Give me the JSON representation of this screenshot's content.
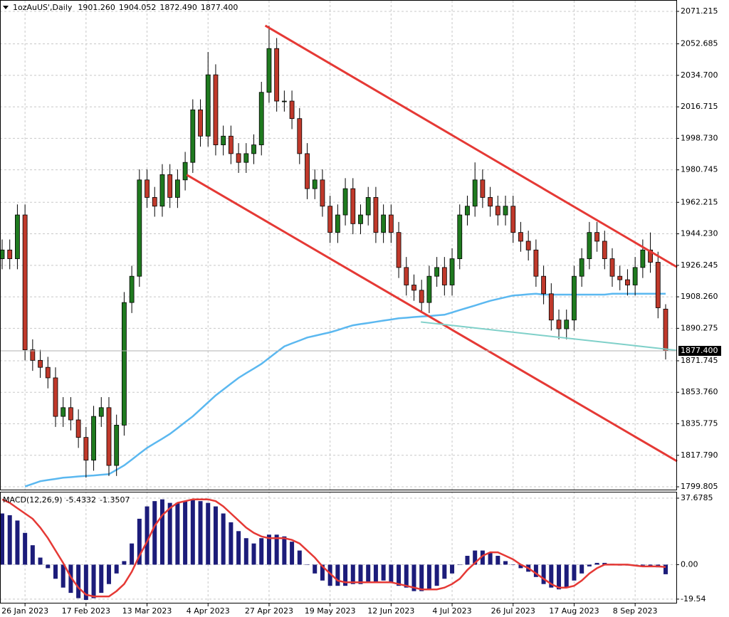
{
  "chart_data": [
    {
      "type": "candlestick",
      "title": "1ozAuUS',Daily",
      "title_values": [
        "1901.260",
        "1904.052",
        "1872.490",
        "1877.400"
      ],
      "categories": [
        null,
        null,
        null,
        "26 Jan 2023",
        null,
        null,
        null,
        null,
        null,
        null,
        null,
        "17 Feb 2023",
        null,
        null,
        null,
        null,
        null,
        null,
        null,
        "13 Mar 2023",
        null,
        null,
        null,
        null,
        null,
        null,
        null,
        "4 Apr 2023",
        null,
        null,
        null,
        null,
        null,
        null,
        null,
        "27 Apr 2023",
        null,
        null,
        null,
        null,
        null,
        null,
        null,
        "19 May 2023",
        null,
        null,
        null,
        null,
        null,
        null,
        null,
        "12 Jun 2023",
        null,
        null,
        null,
        null,
        null,
        null,
        null,
        "4 Jul 2023",
        null,
        null,
        null,
        null,
        null,
        null,
        null,
        "26 Jul 2023",
        null,
        null,
        null,
        null,
        null,
        null,
        null,
        "17 Aug 2023",
        null,
        null,
        null,
        null,
        null,
        null,
        null,
        "8 Sep 2023",
        null,
        null,
        null,
        null
      ],
      "open": [
        1930,
        1935,
        1930,
        1955,
        1878,
        1872,
        1868,
        1862,
        1840,
        1845,
        1838,
        1828,
        1815,
        1840,
        1845,
        1812,
        1835,
        1905,
        1920,
        1975,
        1965,
        1960,
        1978,
        1965,
        1975,
        1985,
        2015,
        2000,
        2035,
        1995,
        2000,
        1990,
        1985,
        1990,
        1995,
        2025,
        2050,
        2020,
        2020,
        2010,
        1990,
        1970,
        1975,
        1960,
        1945,
        1955,
        1970,
        1950,
        1955,
        1965,
        1945,
        1955,
        1945,
        1925,
        1915,
        1912,
        1905,
        1920,
        1925,
        1915,
        1930,
        1955,
        1960,
        1975,
        1965,
        1960,
        1955,
        1960,
        1945,
        1940,
        1935,
        1920,
        1910,
        1895,
        1890,
        1895,
        1920,
        1930,
        1945,
        1940,
        1930,
        1920,
        1918,
        1915,
        1925,
        1935,
        1928,
        1901.26
      ],
      "high": [
        1941,
        1941,
        1961,
        1961,
        1884,
        1878,
        1874,
        1868,
        1851,
        1851,
        1844,
        1834,
        1846,
        1851,
        1851,
        1841,
        1911,
        1926,
        1981,
        1981,
        1971,
        1984,
        1984,
        1981,
        1991,
        2021,
        2021,
        2048,
        2041,
        2006,
        2006,
        1996,
        1996,
        2001,
        2031,
        2063,
        2056,
        2026,
        2026,
        2016,
        1996,
        1981,
        1981,
        1966,
        1961,
        1976,
        1976,
        1961,
        1971,
        1971,
        1961,
        1961,
        1951,
        1931,
        1921,
        1918,
        1926,
        1931,
        1931,
        1936,
        1961,
        1966,
        1985,
        1981,
        1971,
        1966,
        1966,
        1966,
        1951,
        1946,
        1941,
        1926,
        1916,
        1901,
        1901,
        1926,
        1936,
        1951,
        1951,
        1946,
        1936,
        1926,
        1924,
        1931,
        1941,
        1945,
        1934,
        1904.052
      ],
      "low": [
        1924,
        1924,
        1924,
        1872,
        1866,
        1862,
        1856,
        1834,
        1834,
        1832,
        1822,
        1805,
        1809,
        1834,
        1806,
        1806,
        1829,
        1899,
        1914,
        1959,
        1954,
        1954,
        1959,
        1959,
        1969,
        1979,
        1994,
        1994,
        1989,
        1989,
        1984,
        1979,
        1979,
        1984,
        1989,
        2019,
        2014,
        2014,
        2004,
        1984,
        1964,
        1964,
        1954,
        1939,
        1939,
        1949,
        1944,
        1944,
        1949,
        1939,
        1939,
        1939,
        1919,
        1909,
        1906,
        1899,
        1899,
        1914,
        1909,
        1909,
        1924,
        1949,
        1954,
        1959,
        1954,
        1949,
        1949,
        1939,
        1934,
        1929,
        1914,
        1904,
        1889,
        1884,
        1884,
        1889,
        1914,
        1924,
        1934,
        1924,
        1914,
        1912,
        1909,
        1909,
        1919,
        1922,
        1896,
        1872.49
      ],
      "close": [
        1935,
        1930,
        1955,
        1878,
        1872,
        1868,
        1862,
        1840,
        1845,
        1838,
        1828,
        1815,
        1840,
        1845,
        1812,
        1835,
        1905,
        1920,
        1975,
        1965,
        1960,
        1978,
        1965,
        1975,
        1985,
        2015,
        2000,
        2035,
        1995,
        2000,
        1990,
        1985,
        1990,
        1995,
        2025,
        2050,
        2020,
        2020,
        2010,
        1990,
        1970,
        1975,
        1960,
        1945,
        1955,
        1970,
        1950,
        1955,
        1965,
        1945,
        1955,
        1945,
        1925,
        1915,
        1912,
        1905,
        1920,
        1925,
        1915,
        1930,
        1955,
        1960,
        1975,
        1965,
        1960,
        1955,
        1960,
        1945,
        1940,
        1935,
        1920,
        1910,
        1895,
        1890,
        1895,
        1920,
        1930,
        1945,
        1940,
        1930,
        1920,
        1918,
        1915,
        1925,
        1935,
        1928,
        1902,
        1877.4
      ],
      "up_color": "#1f7a1f",
      "down_color": "#c0392b",
      "ylim": [
        1798.2,
        2077.3
      ],
      "yticks": [
        2071.215,
        2052.685,
        {
          "value": 2034.7,
          "label": "2034.700"
        },
        2016.715,
        {
          "value": 1998.73,
          "label": "1998.730"
        },
        1980.745,
        1962.215,
        {
          "value": 1944.23,
          "label": "1944.230"
        },
        1926.245,
        {
          "value": 1908.26,
          "label": "1908.260"
        },
        1890.275,
        1871.745,
        {
          "value": 1853.76,
          "label": "1853.760"
        },
        1835.775,
        {
          "value": 1817.79,
          "label": "1817.790"
        },
        1799.805
      ],
      "grid": true,
      "moving_average": {
        "color": "#5bb8f0",
        "values": [
          null,
          null,
          null,
          1800,
          1801.5,
          1803,
          1803.7,
          1804.3,
          1805,
          1805.3,
          1805.7,
          1806,
          1806.3,
          1806.7,
          1807,
          1809.5,
          1812,
          1815.3,
          1818.7,
          1822,
          1824.7,
          1827.3,
          1830,
          1833.3,
          1836.7,
          1840,
          1844,
          1848,
          1852,
          1855.3,
          1858.7,
          1862,
          1864.7,
          1867.3,
          1870,
          1873.3,
          1876.7,
          1880,
          1881.7,
          1883.3,
          1885,
          1886,
          1887,
          1888,
          1889.3,
          1890.7,
          1892,
          1892.7,
          1893.3,
          1894,
          1894.7,
          1895.3,
          1896,
          1896.3,
          1896.7,
          1897,
          1897.3,
          1897.7,
          1898,
          1899.3,
          1900.7,
          1902,
          1903.3,
          1904.7,
          1906,
          1907,
          1908,
          1909,
          1909.3,
          1909.7,
          1910,
          1909.5,
          1909.5,
          1909.5,
          1909.5,
          1909.5,
          1909.5,
          1909.5,
          1909.5,
          1909.5,
          1910,
          1910,
          1910,
          1910,
          1910,
          1910,
          1910,
          1910
        ]
      },
      "trendlines": [
        {
          "color": "#e53935",
          "x": [
            34.5,
            88.5
          ],
          "y": [
            2063.1,
            1925.2
          ]
        },
        {
          "color": "#e53935",
          "x": [
            24.2,
            88.5
          ],
          "y": [
            1977.9,
            1814.4
          ]
        },
        {
          "color": "#7fd0c9",
          "x": [
            54.9,
            88.5
          ],
          "y": [
            1893.9,
            1877.7
          ]
        }
      ],
      "last_price": 1877.4,
      "last_price_label": "1877.400"
    },
    {
      "type": "macd",
      "title": "MACD(12,26,9)",
      "title_values": [
        "-5.4332",
        "-1.3507"
      ],
      "histogram": {
        "color": "#1c1c7a",
        "values": [
          29,
          28,
          25,
          18,
          11,
          4,
          -2,
          -8,
          -13,
          -16,
          -19,
          -20,
          -19,
          -16,
          -11,
          -5,
          2,
          12,
          26,
          33,
          36,
          37,
          35,
          35,
          36,
          37,
          36,
          35,
          33,
          29,
          24,
          19,
          15,
          12,
          15,
          17,
          17,
          16,
          13,
          8,
          0,
          -5,
          -9,
          -12,
          -12,
          -12,
          -11,
          -11,
          -10,
          -10,
          -9,
          -10,
          -12,
          -13,
          -15,
          -15,
          -14,
          -12,
          -8,
          -5,
          0,
          5,
          8,
          8,
          7,
          5,
          2,
          0,
          -2,
          -4,
          -7,
          -11,
          -13,
          -14,
          -13,
          -9,
          -5,
          -1,
          1,
          1,
          0.5,
          -0.5,
          -0.5,
          0,
          -0.5,
          -1,
          -1.5,
          -5.4332
        ]
      },
      "signal": {
        "color": "#e53935",
        "values": [
          37,
          35,
          32,
          29,
          26,
          21,
          15,
          8,
          1,
          -7,
          -13,
          -17,
          -18,
          -18,
          -18,
          -15,
          -11,
          -4,
          5,
          13,
          22,
          28,
          32,
          35,
          36,
          37,
          37,
          37,
          36,
          33,
          29,
          25,
          21,
          18,
          16,
          15,
          15,
          15,
          14,
          12,
          8,
          4,
          -1,
          -5,
          -9,
          -10,
          -10,
          -10,
          -10,
          -10,
          -10,
          -10,
          -11,
          -12,
          -13,
          -14,
          -14,
          -14,
          -13,
          -11,
          -8,
          -3,
          1,
          5,
          7,
          7,
          5,
          3,
          0,
          -2,
          -5,
          -8,
          -11,
          -13,
          -13,
          -12,
          -9,
          -5,
          -2,
          0,
          0,
          0,
          0,
          -0.5,
          -1,
          -1,
          -1,
          -1.3507
        ]
      },
      "ylim": [
        -21.6,
        40.9
      ],
      "yticks": [
        37.6785,
        {
          "value": 0,
          "label": "0.00"
        },
        -19.54
      ]
    }
  ]
}
